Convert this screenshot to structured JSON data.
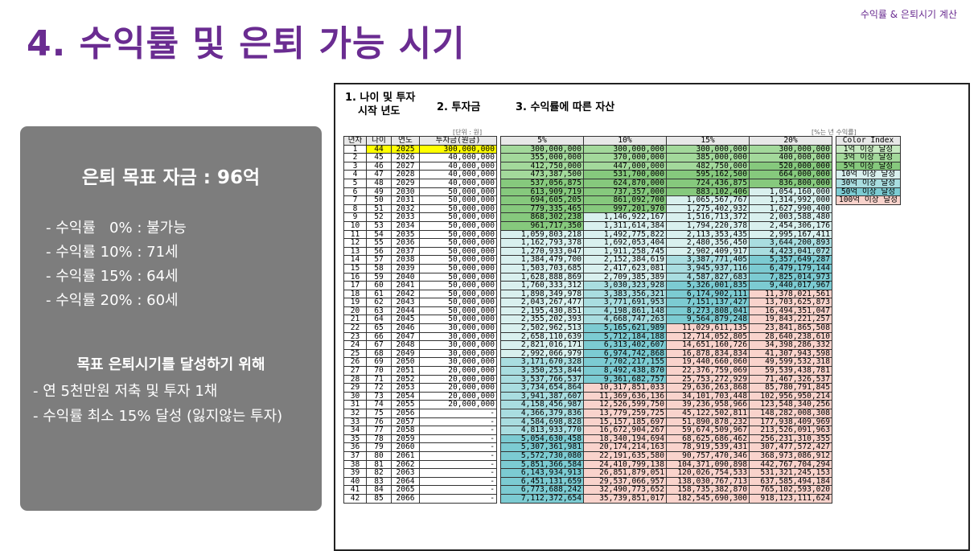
{
  "header": {
    "section_label": "수익률 & 은퇴시기 계산",
    "title": "4. 수익률 및 은퇴 가능 시기"
  },
  "summary": {
    "heading": "은퇴 목표 자금 : 96억",
    "rates": [
      "- 수익률   0% : 불가능",
      "- 수익률 10% : 71세",
      "- 수익률 15% : 64세",
      "- 수익률 20% : 60세"
    ],
    "goal_heading": "목표 은퇴시기를 달성하기 위해",
    "goal_items": [
      "- 연 5천만원 저축 및 투자 1채",
      "- 수익률 최소 15% 달성 (잃지않는 투자)"
    ]
  },
  "sheet": {
    "section1": [
      "1. 나이 및 투자",
      "시작 년도"
    ],
    "section2": "2. 투자금",
    "section3": "3. 수익률에 따른 자산",
    "unit_left": "[단위 : 원]",
    "unit_right": "[%는 년 수익률]",
    "columns": [
      "년차",
      "나이",
      "연도",
      "투자금(원금)",
      "5%",
      "10%",
      "15%",
      "20%"
    ],
    "legend_title": "Color Index",
    "legend": [
      {
        "label": "1억 이상 달성",
        "color": "#c6e9c0"
      },
      {
        "label": "3억 이상 달성",
        "color": "#a3d99b"
      },
      {
        "label": "5억 이상 달성",
        "color": "#86c97d"
      },
      {
        "label": "10억 이상 달성",
        "color": "#d9f0ee"
      },
      {
        "label": "30억 이상 달성",
        "color": "#a9dde0"
      },
      {
        "label": "50억 이상 달성",
        "color": "#7ccbd2"
      },
      {
        "label": "100억 이상 달성",
        "color": "#f9d3cc"
      }
    ],
    "rows": [
      [
        "1",
        "44",
        "2025",
        "300,000,000",
        "300,000,000",
        "300,000,000",
        "300,000,000",
        "300,000,000"
      ],
      [
        "2",
        "45",
        "2026",
        "40,000,000",
        "355,000,000",
        "370,000,000",
        "385,000,000",
        "400,000,000"
      ],
      [
        "3",
        "46",
        "2027",
        "40,000,000",
        "412,750,000",
        "447,000,000",
        "482,750,000",
        "520,000,000"
      ],
      [
        "4",
        "47",
        "2028",
        "40,000,000",
        "473,387,500",
        "531,700,000",
        "595,162,500",
        "664,000,000"
      ],
      [
        "5",
        "48",
        "2029",
        "40,000,000",
        "537,056,875",
        "624,870,000",
        "724,436,875",
        "836,800,000"
      ],
      [
        "6",
        "49",
        "2030",
        "50,000,000",
        "613,909,719",
        "737,357,000",
        "883,102,406",
        "1,054,160,000"
      ],
      [
        "7",
        "50",
        "2031",
        "50,000,000",
        "694,605,205",
        "861,092,700",
        "1,065,567,767",
        "1,314,992,000"
      ],
      [
        "8",
        "51",
        "2032",
        "50,000,000",
        "779,335,465",
        "997,201,970",
        "1,275,402,932",
        "1,627,990,400"
      ],
      [
        "9",
        "52",
        "2033",
        "50,000,000",
        "868,302,238",
        "1,146,922,167",
        "1,516,713,372",
        "2,003,588,480"
      ],
      [
        "10",
        "53",
        "2034",
        "50,000,000",
        "961,717,350",
        "1,311,614,384",
        "1,794,220,378",
        "2,454,306,176"
      ],
      [
        "11",
        "54",
        "2035",
        "50,000,000",
        "1,059,803,218",
        "1,492,775,822",
        "2,113,353,435",
        "2,995,167,411"
      ],
      [
        "12",
        "55",
        "2036",
        "50,000,000",
        "1,162,793,378",
        "1,692,053,404",
        "2,480,356,450",
        "3,644,200,893"
      ],
      [
        "13",
        "56",
        "2037",
        "50,000,000",
        "1,270,933,047",
        "1,911,258,745",
        "2,902,409,917",
        "4,423,041,072"
      ],
      [
        "14",
        "57",
        "2038",
        "50,000,000",
        "1,384,479,700",
        "2,152,384,619",
        "3,387,771,405",
        "5,357,649,287"
      ],
      [
        "15",
        "58",
        "2039",
        "50,000,000",
        "1,503,703,685",
        "2,417,623,081",
        "3,945,937,116",
        "6,479,179,144"
      ],
      [
        "16",
        "59",
        "2040",
        "50,000,000",
        "1,628,888,869",
        "2,709,385,389",
        "4,587,827,683",
        "7,825,014,973"
      ],
      [
        "17",
        "60",
        "2041",
        "50,000,000",
        "1,760,333,312",
        "3,030,323,928",
        "5,326,001,835",
        "9,440,017,967"
      ],
      [
        "18",
        "61",
        "2042",
        "50,000,000",
        "1,898,349,978",
        "3,383,356,321",
        "6,174,902,111",
        "11,378,021,561"
      ],
      [
        "19",
        "62",
        "2043",
        "50,000,000",
        "2,043,267,477",
        "3,771,691,953",
        "7,151,137,427",
        "13,703,625,873"
      ],
      [
        "20",
        "63",
        "2044",
        "50,000,000",
        "2,195,430,851",
        "4,198,861,148",
        "8,273,808,041",
        "16,494,351,047"
      ],
      [
        "21",
        "64",
        "2045",
        "50,000,000",
        "2,355,202,393",
        "4,668,747,263",
        "9,564,879,248",
        "19,843,221,257"
      ],
      [
        "22",
        "65",
        "2046",
        "30,000,000",
        "2,502,962,513",
        "5,165,621,989",
        "11,029,611,135",
        "23,841,865,508"
      ],
      [
        "23",
        "66",
        "2047",
        "30,000,000",
        "2,658,110,639",
        "5,712,184,188",
        "12,714,052,805",
        "28,640,238,610"
      ],
      [
        "24",
        "67",
        "2048",
        "30,000,000",
        "2,821,016,171",
        "6,313,402,607",
        "14,651,160,726",
        "34,398,286,332"
      ],
      [
        "25",
        "68",
        "2049",
        "30,000,000",
        "2,992,066,979",
        "6,974,742,868",
        "16,878,834,834",
        "41,307,943,598"
      ],
      [
        "26",
        "69",
        "2050",
        "30,000,000",
        "3,171,670,328",
        "7,702,217,155",
        "19,440,660,060",
        "49,599,532,318"
      ],
      [
        "27",
        "70",
        "2051",
        "20,000,000",
        "3,350,253,844",
        "8,492,438,870",
        "22,376,759,069",
        "59,539,438,781"
      ],
      [
        "28",
        "71",
        "2052",
        "20,000,000",
        "3,537,766,537",
        "9,361,682,757",
        "25,753,272,929",
        "71,467,326,537"
      ],
      [
        "29",
        "72",
        "2053",
        "20,000,000",
        "3,734,654,864",
        "10,317,851,033",
        "29,636,263,868",
        "85,780,791,845"
      ],
      [
        "30",
        "73",
        "2054",
        "20,000,000",
        "3,941,387,607",
        "11,369,636,136",
        "34,101,703,448",
        "102,956,950,214"
      ],
      [
        "31",
        "74",
        "2055",
        "20,000,000",
        "4,158,456,987",
        "12,526,599,750",
        "39,236,958,966",
        "123,548,340,256"
      ],
      [
        "32",
        "75",
        "2056",
        "-",
        "4,366,379,836",
        "13,779,259,725",
        "45,122,502,811",
        "148,282,008,308"
      ],
      [
        "33",
        "76",
        "2057",
        "-",
        "4,584,698,828",
        "15,157,185,697",
        "51,890,878,232",
        "177,938,409,969"
      ],
      [
        "34",
        "77",
        "2058",
        "-",
        "4,813,933,770",
        "16,672,904,267",
        "59,674,509,967",
        "213,526,091,963"
      ],
      [
        "35",
        "78",
        "2059",
        "-",
        "5,054,630,458",
        "18,340,194,694",
        "68,625,686,462",
        "256,231,310,355"
      ],
      [
        "36",
        "79",
        "2060",
        "-",
        "5,307,361,981",
        "20,174,214,163",
        "78,919,539,431",
        "307,477,572,427"
      ],
      [
        "37",
        "80",
        "2061",
        "-",
        "5,572,730,080",
        "22,191,635,580",
        "90,757,470,346",
        "368,973,086,912"
      ],
      [
        "38",
        "81",
        "2062",
        "-",
        "5,851,366,584",
        "24,410,799,138",
        "104,371,090,898",
        "442,767,704,294"
      ],
      [
        "39",
        "82",
        "2063",
        "-",
        "6,143,934,913",
        "26,851,879,051",
        "120,026,754,533",
        "531,321,245,153"
      ],
      [
        "40",
        "83",
        "2064",
        "-",
        "6,451,131,659",
        "29,537,066,957",
        "138,030,767,713",
        "637,585,494,184"
      ],
      [
        "41",
        "84",
        "2065",
        "-",
        "6,773,688,242",
        "32,490,773,652",
        "158,735,382,870",
        "765,102,593,020"
      ],
      [
        "42",
        "85",
        "2066",
        "-",
        "7,112,372,654",
        "35,739,851,017",
        "182,545,690,300",
        "918,123,111,624"
      ]
    ]
  }
}
